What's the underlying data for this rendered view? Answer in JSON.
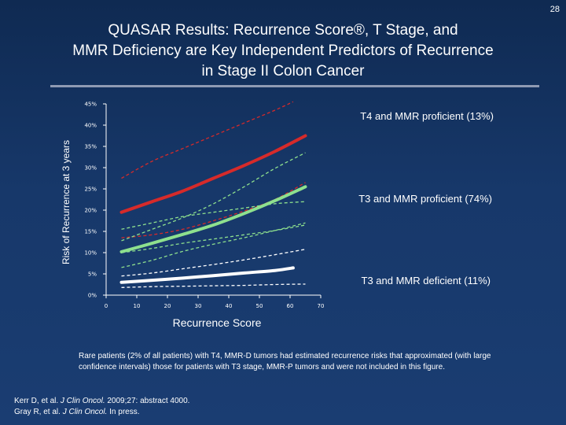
{
  "slide_number": "28",
  "title": {
    "line1": "QUASAR Results: Recurrence Score®, T Stage, and",
    "line2": "MMR Deficiency are Key Independent Predictors of Recurrence",
    "line3": "in Stage II Colon Cancer"
  },
  "note": "Rare patients (2% of all patients) with T4, MMR-D tumors had estimated recurrence risks that approximated (with large confidence intervals) those for patients with T3 stage, MMR-P tumors and were not included in this figure.",
  "references": [
    {
      "authors": "Kerr D, et al. ",
      "journal": "J Clin Oncol.",
      "rest": " 2009;27: abstract 4000."
    },
    {
      "authors": "Gray R, et al. ",
      "journal": "J Clin Oncol.",
      "rest": " In press."
    }
  ],
  "chart_data": {
    "type": "line",
    "xlabel": "Recurrence Score",
    "ylabel": "Risk of Recurrence at 3 years",
    "xlim": [
      0,
      70
    ],
    "ylim": [
      0,
      45
    ],
    "xticks": [
      0,
      10,
      20,
      30,
      40,
      50,
      60,
      70
    ],
    "yticks": [
      0,
      5,
      10,
      15,
      20,
      25,
      30,
      35,
      40,
      45
    ],
    "ytick_labels": [
      "0%",
      "5%",
      "10%",
      "15%",
      "20%",
      "25%",
      "30%",
      "35%",
      "40%",
      "45%"
    ],
    "annotations": [
      {
        "text": "T4 and MMR proficient (13%)",
        "color": "#ffffff"
      },
      {
        "text": "T3 and MMR proficient (74%)",
        "color": "#ffffff"
      },
      {
        "text": "T3 and MMR deficient (11%)",
        "color": "#ffffff"
      }
    ],
    "series": [
      {
        "group": "T4 and MMR proficient",
        "style": "solid",
        "color": "#d62a2a",
        "x": [
          5,
          15,
          25,
          35,
          45,
          55,
          65
        ],
        "y": [
          19.5,
          22,
          24.5,
          27.5,
          30.5,
          33.8,
          37.5
        ]
      },
      {
        "group": "T4 and MMR proficient",
        "style": "dashed",
        "color": "#d62a2a",
        "x": [
          5,
          15,
          25,
          35,
          45,
          55,
          61
        ],
        "y": [
          27.5,
          31.5,
          34.5,
          37.5,
          40.5,
          43.5,
          45.5
        ]
      },
      {
        "group": "T4 and MMR proficient",
        "style": "dashed",
        "color": "#d62a2a",
        "x": [
          5,
          15,
          25,
          35,
          45,
          55,
          65
        ],
        "y": [
          13.5,
          14.2,
          15.5,
          17.5,
          19.8,
          22.5,
          26.5
        ]
      },
      {
        "group": "T3 and MMR proficient",
        "style": "solid",
        "color": "#8ee08e",
        "x": [
          5,
          15,
          25,
          35,
          45,
          55,
          65
        ],
        "y": [
          10.2,
          12.2,
          14.3,
          16.5,
          19.2,
          22.2,
          25.5
        ]
      },
      {
        "group": "T3 and MMR proficient",
        "style": "dashed",
        "color": "#8ee08e",
        "x": [
          5,
          15,
          25,
          35,
          45,
          55,
          65
        ],
        "y": [
          12.8,
          15.5,
          18.2,
          21.5,
          25.5,
          29.8,
          33.5
        ]
      },
      {
        "group": "T3 and MMR proficient",
        "style": "dashed",
        "color": "#8ee08e",
        "x": [
          5,
          15,
          25,
          35,
          45,
          55,
          65
        ],
        "y": [
          6.5,
          8.2,
          10.3,
          12,
          13.5,
          15.2,
          17
        ]
      },
      {
        "group": "T3 and MMR proficient",
        "style": "dashed",
        "color": "#8ee08e",
        "x": [
          5,
          15,
          25,
          35,
          45,
          55,
          65
        ],
        "y": [
          15.5,
          17,
          18.5,
          19.5,
          20.5,
          21.5,
          22
        ]
      },
      {
        "group": "T3 and MMR proficient",
        "style": "dashed",
        "color": "#8ee08e",
        "x": [
          5,
          15,
          25,
          35,
          45,
          55,
          65
        ],
        "y": [
          10,
          11,
          12.2,
          13.2,
          14.2,
          15.2,
          16.5
        ]
      },
      {
        "group": "T3 and MMR deficient",
        "style": "solid",
        "color": "#ffffff",
        "x": [
          5,
          15,
          25,
          35,
          45,
          55,
          61
        ],
        "y": [
          3,
          3.5,
          4,
          4.6,
          5.2,
          5.8,
          6.4
        ]
      },
      {
        "group": "T3 and MMR deficient",
        "style": "dashed",
        "color": "#ffffff",
        "x": [
          5,
          15,
          25,
          35,
          45,
          55,
          65
        ],
        "y": [
          4.5,
          5.2,
          6.2,
          7.2,
          8.3,
          9.5,
          10.8
        ]
      },
      {
        "group": "T3 and MMR deficient",
        "style": "dashed",
        "color": "#ffffff",
        "x": [
          5,
          15,
          25,
          35,
          45,
          55,
          65
        ],
        "y": [
          1.8,
          2,
          2.1,
          2.2,
          2.3,
          2.5,
          2.6
        ]
      }
    ]
  }
}
